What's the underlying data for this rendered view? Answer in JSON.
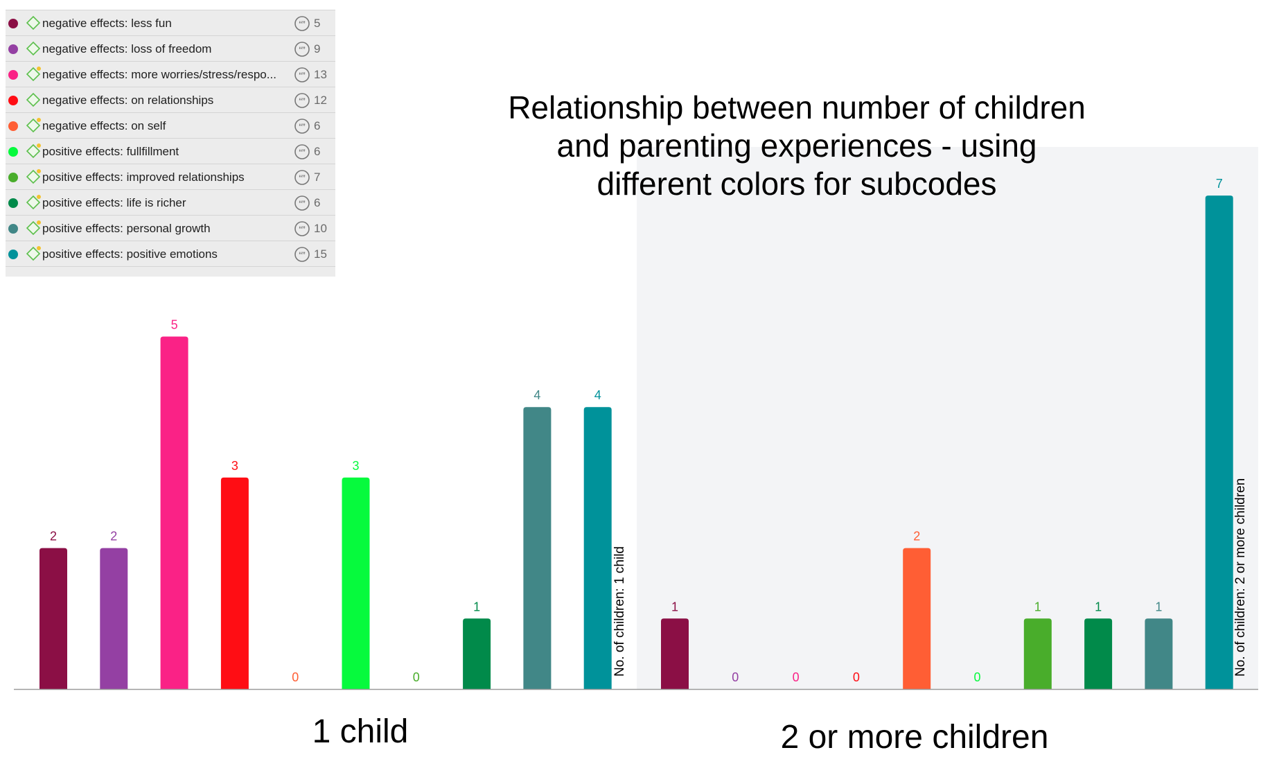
{
  "code_list": {
    "items": [
      {
        "label": "negative effects: less fun",
        "count": "5",
        "color": "#8b0f45",
        "has_memo": false
      },
      {
        "label": "negative effects: loss of freedom",
        "count": "9",
        "color": "#9440a3",
        "has_memo": false
      },
      {
        "label": "negative effects: more worries/stress/respo...",
        "count": "13",
        "color": "#fa2286",
        "has_memo": true
      },
      {
        "label": "negative effects: on relationships",
        "count": "12",
        "color": "#ff0d14",
        "has_memo": false
      },
      {
        "label": "negative effects: on self",
        "count": "6",
        "color": "#ff5e34",
        "has_memo": true
      },
      {
        "label": "positive effects: fullfillment",
        "count": "6",
        "color": "#06fa3d",
        "has_memo": true
      },
      {
        "label": "positive effects: improved relationships",
        "count": "7",
        "color": "#49ad2b",
        "has_memo": true
      },
      {
        "label": "positive effects: life is richer",
        "count": "6",
        "color": "#018a4a",
        "has_memo": true
      },
      {
        "label": "positive effects: personal growth",
        "count": "10",
        "color": "#418787",
        "has_memo": true
      },
      {
        "label": "positive effects: positive emotions",
        "count": "15",
        "color": "#00929a",
        "has_memo": true
      }
    ]
  },
  "chart_data": {
    "type": "bar",
    "title": "Relationship between number of children and parenting experiences - using different colors for subcodes",
    "title_lines": [
      "Relationship between number of children",
      "and parenting experiences - using",
      "different colors for subcodes"
    ],
    "categories": [
      "negative effects: less fun",
      "negative effects: loss of freedom",
      "negative effects: more worries/stress/respo...",
      "negative effects: on relationships",
      "negative effects: on self",
      "positive effects: fullfillment",
      "positive effects: improved relationships",
      "positive effects: life is richer",
      "positive effects: personal growth",
      "positive effects: positive emotions"
    ],
    "colors": [
      "#8b0f45",
      "#9440a3",
      "#fa2286",
      "#ff0d14",
      "#ff5e34",
      "#06fa3d",
      "#49ad2b",
      "#018a4a",
      "#418787",
      "#00929a"
    ],
    "ylim": [
      0,
      7
    ],
    "groups": [
      {
        "name": "1 child",
        "axis_label": "No. of children: 1 child",
        "values": [
          2,
          2,
          5,
          3,
          0,
          3,
          0,
          1,
          4,
          4
        ]
      },
      {
        "name": "2 or more children",
        "axis_label": "No. of children: 2 or more  children",
        "values": [
          1,
          0,
          0,
          0,
          2,
          0,
          1,
          1,
          1,
          7
        ]
      }
    ]
  }
}
